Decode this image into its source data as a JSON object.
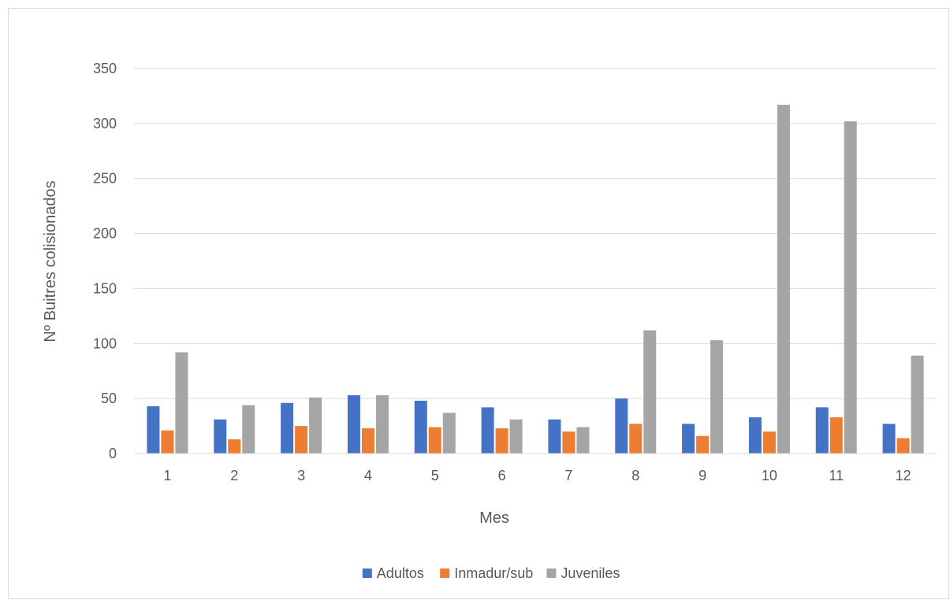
{
  "chart_data": {
    "type": "bar",
    "title": "",
    "xlabel": "Mes",
    "ylabel": "Nº Buitres colisionados",
    "categories": [
      "1",
      "2",
      "3",
      "4",
      "5",
      "6",
      "7",
      "8",
      "9",
      "10",
      "11",
      "12"
    ],
    "series": [
      {
        "name": "Adultos",
        "color": "#4472C4",
        "values": [
          43,
          31,
          46,
          53,
          48,
          42,
          31,
          50,
          27,
          33,
          42,
          27
        ]
      },
      {
        "name": "Inmadur/sub",
        "color": "#ED7D31",
        "values": [
          21,
          13,
          25,
          23,
          24,
          23,
          20,
          27,
          16,
          20,
          33,
          14
        ]
      },
      {
        "name": "Juveniles",
        "color": "#A5A5A5",
        "values": [
          92,
          44,
          51,
          53,
          37,
          31,
          24,
          112,
          103,
          317,
          302,
          89
        ]
      }
    ],
    "ylim": [
      0,
      350
    ],
    "yticks": [
      0,
      50,
      100,
      150,
      200,
      250,
      300,
      350
    ],
    "grid": true,
    "legend_position": "bottom"
  }
}
